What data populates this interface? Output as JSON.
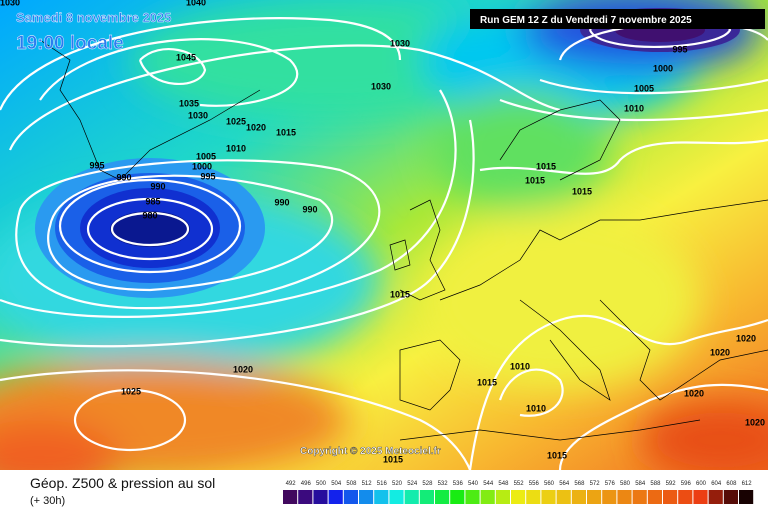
{
  "header": {
    "date": "Samedi 8 novembre 2025",
    "time": "19:00 locale",
    "run": "Run GEM 12 Z du Vendredi 7 novembre 2025"
  },
  "copyright": "Copyright © 2025 Meteociel.fr",
  "footer": {
    "title": "Géop. Z500 & pression au sol",
    "lead": "(+ 30h)"
  },
  "isobar_labels": [
    "1040",
    "1030",
    "1045",
    "1035",
    "1030",
    "1025",
    "1020",
    "1015",
    "1010",
    "1005",
    "1000",
    "995",
    "990",
    "985",
    "980",
    "995",
    "990",
    "990",
    "990",
    "1030",
    "1030",
    "995",
    "1000",
    "1005",
    "1010",
    "1015",
    "1015",
    "1015",
    "1015",
    "1020",
    "1025",
    "1015",
    "1010",
    "1010",
    "1015",
    "1015",
    "1020",
    "1020",
    "1020",
    "1020"
  ],
  "scale": {
    "labels": [
      492,
      496,
      500,
      504,
      508,
      512,
      516,
      520,
      524,
      528,
      532,
      536,
      540,
      544,
      548,
      552,
      556,
      560,
      564,
      568,
      572,
      576,
      580,
      584,
      588,
      592,
      596,
      600,
      604,
      608,
      612
    ]
  }
}
